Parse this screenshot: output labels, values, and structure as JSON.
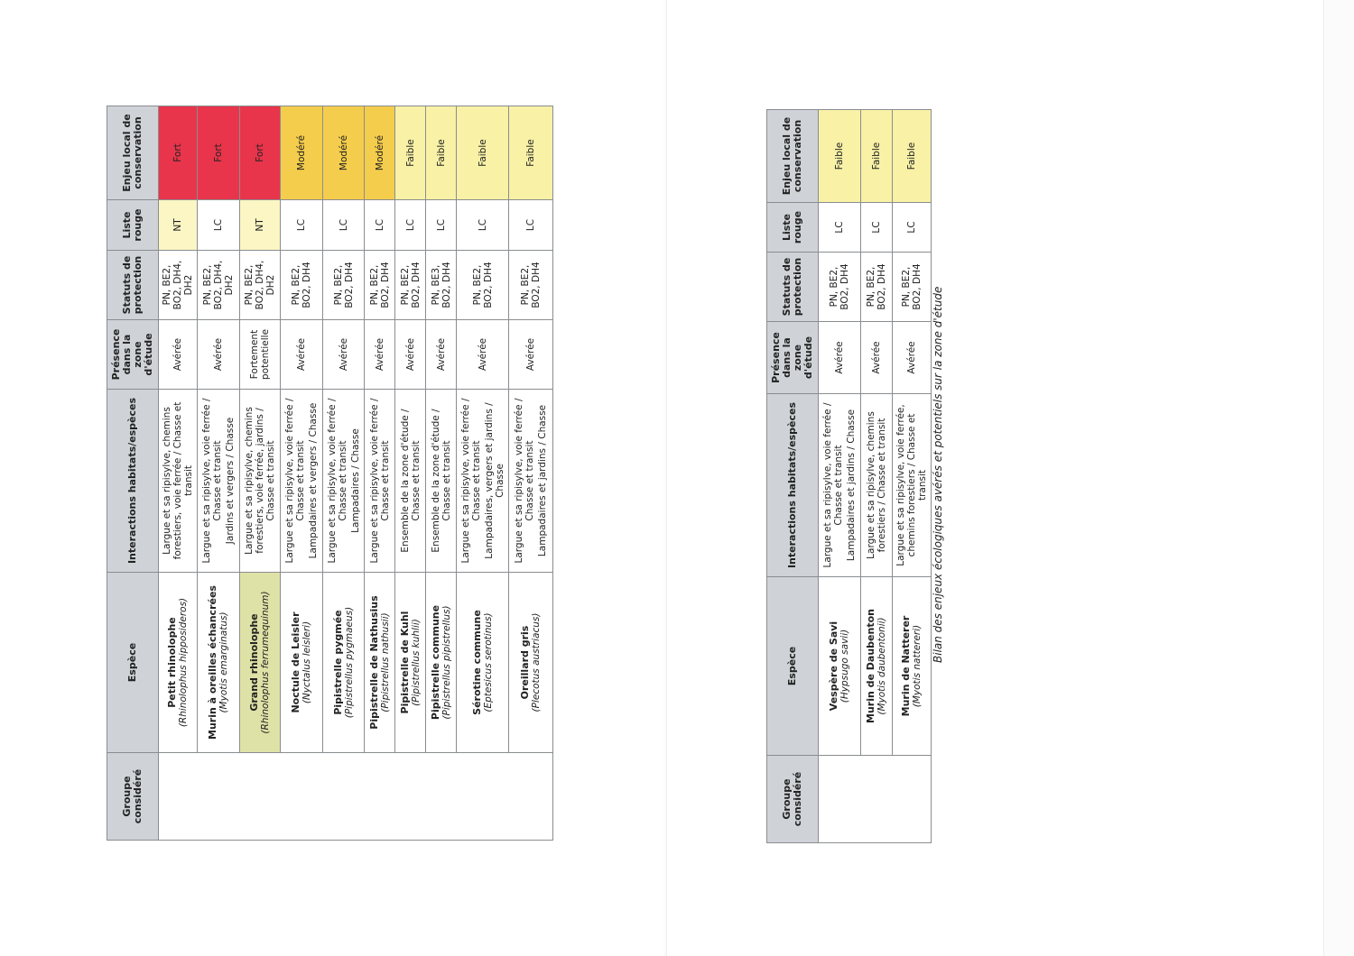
{
  "colors": {
    "header_bg": "#cfd3d7",
    "fort": "#e8354b",
    "modere": "#f5cd4c",
    "faible": "#f8f1a6",
    "nt": "#fbf6c4",
    "highlight_species": "#dfe2a6"
  },
  "headers": [
    "Groupe considéré",
    "Espèce",
    "Interactions habitats/espèces",
    "Présence dans la zone d'étude",
    "Statuts de protection",
    "Liste rouge",
    "Enjeu local de conservation"
  ],
  "pages": [
    {
      "groupe": "",
      "rows": [
        {
          "espece": "Petit rhinolophe",
          "latin": "(Rhinolophus hipposideros)",
          "interactions": [
            "Largue et sa ripisylve, chemins forestiers, voie ferrée / Chasse et transit"
          ],
          "presence": "Avérée",
          "statuts": "PN, BE2, BO2, DH4, DH2",
          "liste_rouge": "NT",
          "enjeu": "Fort",
          "enjeu_level": "fort"
        },
        {
          "espece": "Murin à oreilles échancrées",
          "latin": "(Myotis emarginatus)",
          "interactions": [
            "Largue et sa ripisylve, voie ferrée / Chasse et transit",
            "Jardins et vergers / Chasse"
          ],
          "presence": "Avérée",
          "statuts": "PN, BE2, BO2, DH4, DH2",
          "liste_rouge": "LC",
          "enjeu": "Fort",
          "enjeu_level": "fort"
        },
        {
          "espece": "Grand rhinolophe",
          "latin": "(Rhinolophus ferrumequinum)",
          "highlight": true,
          "interactions": [
            "Largue et sa ripisylve, chemins forestiers, voie ferrée, jardins / Chasse et transit"
          ],
          "presence": "Fortement potentielle",
          "statuts": "PN, BE2, BO2, DH4, DH2",
          "liste_rouge": "NT",
          "enjeu": "Fort",
          "enjeu_level": "fort"
        },
        {
          "espece": "Noctule de Leisler",
          "latin": "(Nyctalus leisleri)",
          "interactions": [
            "Largue et sa ripisylve, voie ferrée / Chasse et transit",
            "Lampadaires et vergers / Chasse"
          ],
          "presence": "Avérée",
          "statuts": "PN, BE2, BO2, DH4",
          "liste_rouge": "LC",
          "enjeu": "Modéré",
          "enjeu_level": "modere"
        },
        {
          "espece": "Pipistrelle pygmée",
          "latin": "(Pipistrellus pygmaeus)",
          "interactions": [
            "Largue et sa ripisylve, voie ferrée / Chasse et transit",
            "Lampadaires / Chasse"
          ],
          "presence": "Avérée",
          "statuts": "PN, BE2, BO2, DH4",
          "liste_rouge": "LC",
          "enjeu": "Modéré",
          "enjeu_level": "modere"
        },
        {
          "espece": "Pipistrelle de Nathusius",
          "latin": "(Pipistrellus nathusii)",
          "interactions": [
            "Largue et sa ripisylve, voie ferrée / Chasse et transit"
          ],
          "presence": "Avérée",
          "statuts": "PN, BE2, BO2, DH4",
          "liste_rouge": "LC",
          "enjeu": "Modéré",
          "enjeu_level": "modere"
        },
        {
          "espece": "Pipistrelle de Kuhl",
          "latin": "(Pipistrellus kuhlii)",
          "interactions": [
            "Ensemble de la zone d'étude / Chasse et transit"
          ],
          "presence": "Avérée",
          "statuts": "PN, BE2, BO2, DH4",
          "liste_rouge": "LC",
          "enjeu": "Faible",
          "enjeu_level": "faible"
        },
        {
          "espece": "Pipistrelle commune",
          "latin": "(Pipistrellus pipistrellus)",
          "interactions": [
            "Ensemble de la zone d'étude / Chasse et transit"
          ],
          "presence": "Avérée",
          "statuts": "PN, BE3, BO2, DH4",
          "liste_rouge": "LC",
          "enjeu": "Faible",
          "enjeu_level": "faible"
        },
        {
          "espece": "Sérotine commune",
          "latin": "(Eptesicus serotinus)",
          "interactions": [
            "Largue et sa ripisylve, voie ferrée / Chasse et transit",
            "Lampadaires, vergers et jardins / Chasse"
          ],
          "presence": "Avérée",
          "statuts": "PN, BE2, BO2, DH4",
          "liste_rouge": "LC",
          "enjeu": "Faible",
          "enjeu_level": "faible"
        },
        {
          "espece": "Oreillard gris",
          "latin": "(Plecotus austriacus)",
          "interactions": [
            "Largue et sa ripisylve, voie ferrée / Chasse et transit",
            "Lampadaires et jardins / Chasse"
          ],
          "presence": "Avérée",
          "statuts": "PN, BE2, BO2, DH4",
          "liste_rouge": "LC",
          "enjeu": "Faible",
          "enjeu_level": "faible"
        }
      ]
    },
    {
      "groupe": "",
      "rows": [
        {
          "espece": "Vespère de Savi",
          "latin": "(Hypsugo savii)",
          "interactions": [
            "Largue et sa ripisylve, voie ferrée / Chasse et transit",
            "Lampadaires et jardins / Chasse"
          ],
          "presence": "Avérée",
          "statuts": "PN, BE2, BO2, DH4",
          "liste_rouge": "LC",
          "enjeu": "Faible",
          "enjeu_level": "faible"
        },
        {
          "espece": "Murin de Daubenton",
          "latin": "(Myotis daubentonii)",
          "interactions": [
            "Largue et sa ripisylve, chemins forestiers / Chasse et transit"
          ],
          "presence": "Avérée",
          "statuts": "PN, BE2, BO2, DH4",
          "liste_rouge": "LC",
          "enjeu": "Faible",
          "enjeu_level": "faible"
        },
        {
          "espece": "Murin de Natterer",
          "latin": "(Myotis nattereri)",
          "interactions": [
            "Largue et sa ripisylve, voie ferrée, chemins forestiers / Chasse et transit"
          ],
          "presence": "Avérée",
          "statuts": "PN, BE2, BO2, DH4",
          "liste_rouge": "LC",
          "enjeu": "Faible",
          "enjeu_level": "faible"
        }
      ],
      "caption": "Bilan des enjeux écologiques avérés et potentiels sur la zone d'étude"
    }
  ]
}
